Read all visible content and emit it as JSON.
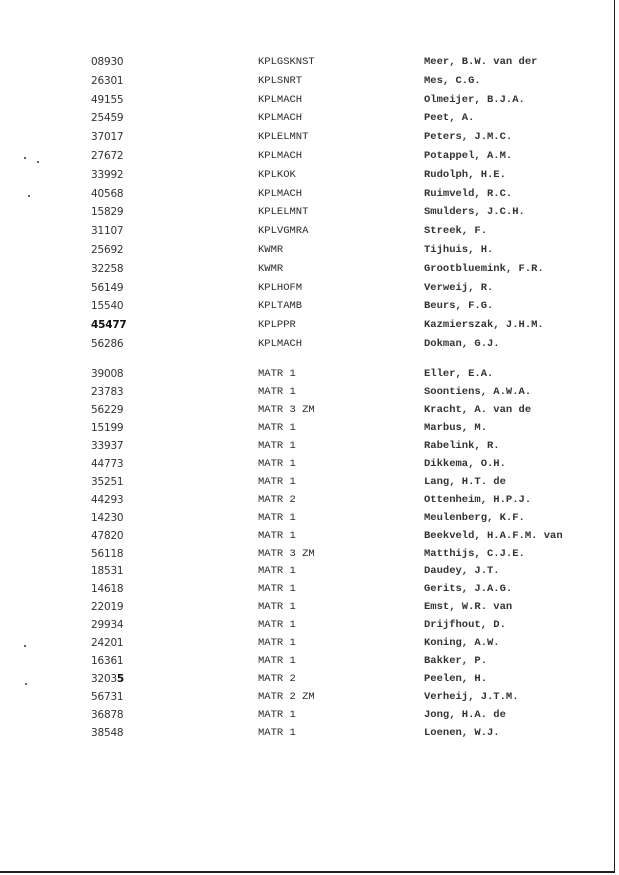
{
  "groups": [
    {
      "rows": [
        {
          "number": "08930",
          "code": "KPLGSKNST",
          "name": "Meer, B.W. van der"
        },
        {
          "number": "26301",
          "code": "KPLSNRT",
          "name": "Mes, C.G."
        },
        {
          "number": "49155",
          "code": "KPLMACH",
          "name": "Olmeijer, B.J.A."
        },
        {
          "number": "25459",
          "code": "KPLMACH",
          "name": "Peet, A."
        },
        {
          "number": "37017",
          "code": "KPLELMNT",
          "name": "Peters, J.M.C."
        },
        {
          "number": "27672",
          "code": "KPLMACH",
          "name": "Potappel, A.M."
        },
        {
          "number": "33992",
          "code": "KPLKOK",
          "name": "Rudolph, H.E."
        },
        {
          "number": "40568",
          "code": "KPLMACH",
          "name": "Ruimveld, R.C."
        },
        {
          "number": "15829",
          "code": "KPLELMNT",
          "name": "Smulders, J.C.H."
        },
        {
          "number": "31107",
          "code": "KPLVGMRA",
          "name": "Streek, F."
        },
        {
          "number": "25692",
          "code": "KWMR",
          "name": "Tijhuis, H."
        },
        {
          "number": "32258",
          "code": "KWMR",
          "name": "Grootbluemink, F.R."
        },
        {
          "number": "56149",
          "code": "KPLHOFM",
          "name": "Verweij, R."
        },
        {
          "number": "15540",
          "code": "KPLTAMB",
          "name": "Beurs, F.G."
        },
        {
          "number": "45477",
          "code": "KPLPPR",
          "name": "Kazmierszak, J.H.M."
        },
        {
          "number": "56286",
          "code": "KPLMACH",
          "name": "Dokman, G.J."
        }
      ]
    },
    {
      "rows": [
        {
          "number": "39008",
          "code": "MATR 1",
          "name": "Eller, E.A."
        },
        {
          "number": "23783",
          "code": "MATR 1",
          "name": "Soontiens, A.W.A."
        },
        {
          "number": "56229",
          "code": "MATR 3 ZM",
          "name": "Kracht, A. van de"
        },
        {
          "number": "15199",
          "code": "MATR 1",
          "name": "Marbus, M."
        },
        {
          "number": "33937",
          "code": "MATR 1",
          "name": "Rabelink, R."
        },
        {
          "number": "44773",
          "code": "MATR 1",
          "name": "Dikkema, O.H."
        },
        {
          "number": "35251",
          "code": "MATR 1",
          "name": "Lang, H.T. de"
        },
        {
          "number": "44293",
          "code": "MATR 2",
          "name": "Ottenheim, H.P.J."
        },
        {
          "number": "14230",
          "code": "MATR 1",
          "name": "Meulenberg, K.F."
        },
        {
          "number": "47820",
          "code": "MATR 1",
          "name": "Beekveld, H.A.F.M. van"
        },
        {
          "number": "56118",
          "code": "MATR 3 ZM",
          "name": "Matthijs, C.J.E."
        },
        {
          "number": "18531",
          "code": "MATR 1",
          "name": "Daudey, J.T."
        },
        {
          "number": "14618",
          "code": "MATR 1",
          "name": "Gerits, J.A.G."
        },
        {
          "number": "22019",
          "code": "MATR 1",
          "name": "Emst, W.R. van"
        },
        {
          "number": "29934",
          "code": "MATR 1",
          "name": "Drijfhout, D."
        },
        {
          "number": "24201",
          "code": "MATR 1",
          "name": "Koning, A.W."
        },
        {
          "number": "16361",
          "code": "MATR 1",
          "name": "Bakker, P."
        },
        {
          "number": "32035",
          "code": "MATR 2",
          "name": "Peelen, H."
        },
        {
          "number": "56731",
          "code": "MATR 2 ZM",
          "name": "Verheij, J.T.M."
        },
        {
          "number": "36878",
          "code": "MATR 1",
          "name": "Jong, H.A. de"
        },
        {
          "number": "38548",
          "code": "MATR 1",
          "name": "Loenen, W.J."
        }
      ]
    }
  ]
}
